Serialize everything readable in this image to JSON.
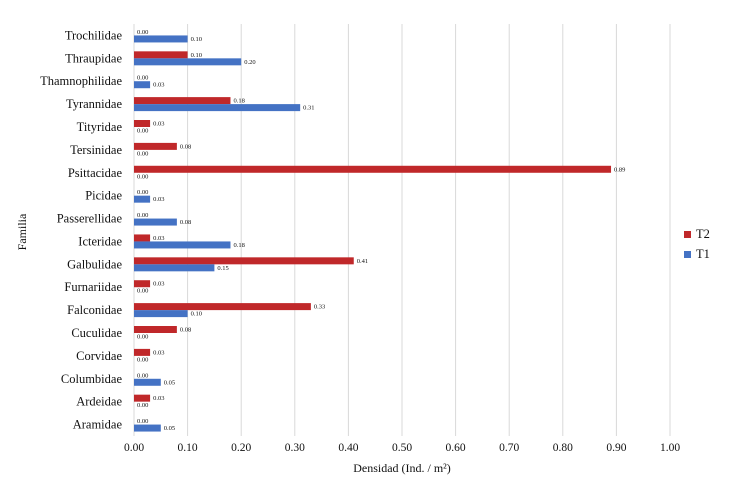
{
  "chart_data": {
    "type": "bar",
    "orientation": "horizontal",
    "categories": [
      "Trochilidae",
      "Thraupidae",
      "Thamnophilidae",
      "Tyrannidae",
      "Tityridae",
      "Tersinidae",
      "Psittacidae",
      "Picidae",
      "Passerellidae",
      "Icteridae",
      "Galbulidae",
      "Furnariidae",
      "Falconidae",
      "Cuculidae",
      "Corvidae",
      "Columbidae",
      "Ardeidae",
      "Aramidae"
    ],
    "series": [
      {
        "name": "T2",
        "color": "#c0282a",
        "values": [
          0.0,
          0.1,
          0.0,
          0.18,
          0.03,
          0.08,
          0.89,
          0.0,
          0.0,
          0.03,
          0.41,
          0.03,
          0.33,
          0.08,
          0.03,
          0.0,
          0.03,
          0.0
        ]
      },
      {
        "name": "T1",
        "color": "#4472c4",
        "values": [
          0.1,
          0.2,
          0.03,
          0.31,
          0.0,
          0.0,
          0.0,
          0.03,
          0.08,
          0.18,
          0.15,
          0.0,
          0.1,
          0.0,
          0.0,
          0.05,
          0.0,
          0.05
        ]
      }
    ],
    "value_labels": {
      "T2": [
        "0.00",
        "0.10",
        "0.00",
        "0.18",
        "0.03",
        "0.08",
        "0.89",
        "0.00",
        "0.00",
        "0.03",
        "0.41",
        "0.03",
        "0.33",
        "0.08",
        "0.03",
        "0.00",
        "0.03",
        "0.00"
      ],
      "T1": [
        "0.10",
        "0.20",
        "0.03",
        "0.31",
        "0.00",
        "0.00",
        "0.00",
        "0.03",
        "0.08",
        "0.18",
        "0.15",
        "0.00",
        "0.10",
        "0.00",
        "0.00",
        "0.05",
        "0.00",
        "0.05"
      ]
    },
    "xlabel": "Densidad (Ind. / m²)",
    "ylabel": "Familia",
    "xlim": [
      0,
      1.0
    ],
    "xticks": [
      0.0,
      0.1,
      0.2,
      0.3,
      0.4,
      0.5,
      0.6,
      0.7,
      0.8,
      0.9,
      1.0
    ],
    "xtick_labels": [
      "0.00",
      "0.10",
      "0.20",
      "0.30",
      "0.40",
      "0.50",
      "0.60",
      "0.70",
      "0.80",
      "0.90",
      "1.00"
    ],
    "grid": "vertical",
    "legend": "right"
  }
}
